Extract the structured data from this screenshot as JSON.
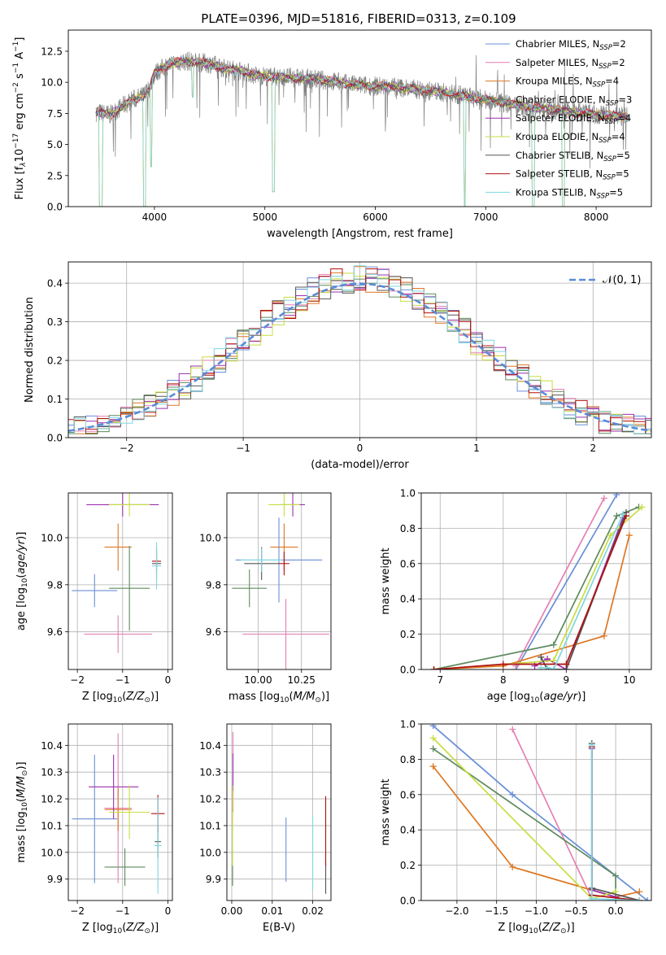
{
  "figure": {
    "title": "PLATE=0396, MJD=51816, FIBERID=0313, z=0.109"
  },
  "colors": {
    "chabrier_miles": "#6a8fd8",
    "salpeter_miles": "#e67fb3",
    "kroupa_miles": "#dd7722",
    "chabrier_elodie": "#5e8a5e",
    "salpeter_elodie": "#9b2fae",
    "kroupa_elodie": "#c8dd40",
    "chabrier_stelib": "#555555",
    "salpeter_stelib": "#b01010",
    "kroupa_stelib": "#7fd6e0",
    "normal_curve": "#5b8bd6",
    "data_spectrum": "#808080"
  },
  "chart_data": [
    {
      "id": "spectrum",
      "type": "line",
      "xlabel": "wavelength [Angstrom, rest frame]",
      "ylabel_html": "Flux [f<tspan font-style='italic' dy='3' font-size='9'>λ</tspan><tspan dy='-3'>10</tspan><tspan dy='-6' font-size='9'>−17</tspan><tspan dy='6'> erg cm</tspan><tspan dy='-6' font-size='9'>−2</tspan><tspan dy='6'> s</tspan><tspan dy='-6' font-size='9'>−1</tspan><tspan dy='6'> A</tspan><tspan dy='-6' font-size='9'>−1</tspan><tspan dy='6'>]</tspan>",
      "xlim": [
        3220,
        8500
      ],
      "ylim": [
        0,
        14.2
      ],
      "xticks": [
        4000,
        5000,
        6000,
        7000,
        8000
      ],
      "yticks": [
        0.0,
        2.5,
        5.0,
        7.5,
        10.0,
        12.5
      ],
      "legend": [
        {
          "name": "Chabrier MILES",
          "nssp": "2",
          "color_key": "chabrier_miles"
        },
        {
          "name": "Salpeter MILES",
          "nssp": "2",
          "color_key": "salpeter_miles"
        },
        {
          "name": "Kroupa MILES",
          "nssp": "4",
          "color_key": "kroupa_miles"
        },
        {
          "name": "Chabrier ELODIE",
          "nssp": "3",
          "color_key": "chabrier_elodie"
        },
        {
          "name": "Salpeter ELODIE",
          "nssp": "4",
          "color_key": "salpeter_elodie"
        },
        {
          "name": "Kroupa ELODIE",
          "nssp": "4",
          "color_key": "kroupa_elodie"
        },
        {
          "name": "Chabrier STELIB",
          "nssp": "5",
          "color_key": "chabrier_stelib"
        },
        {
          "name": "Salpeter STELIB",
          "nssp": "5",
          "color_key": "salpeter_stelib"
        },
        {
          "name": "Kroupa STELIB",
          "nssp": "5",
          "color_key": "kroupa_stelib"
        }
      ],
      "model_continuum": [
        [
          3470,
          7.6
        ],
        [
          3600,
          7.4
        ],
        [
          3700,
          8.0
        ],
        [
          3800,
          8.6
        ],
        [
          3900,
          8.9
        ],
        [
          3960,
          9.6
        ],
        [
          4000,
          10.7
        ],
        [
          4100,
          11.3
        ],
        [
          4200,
          11.6
        ],
        [
          4300,
          11.7
        ],
        [
          4400,
          11.6
        ],
        [
          4500,
          11.5
        ],
        [
          4600,
          11.2
        ],
        [
          4700,
          11.0
        ],
        [
          4800,
          10.9
        ],
        [
          4900,
          10.6
        ],
        [
          5000,
          10.5
        ],
        [
          5200,
          10.4
        ],
        [
          5400,
          10.3
        ],
        [
          5600,
          10.1
        ],
        [
          5800,
          9.8
        ],
        [
          6000,
          9.7
        ],
        [
          6200,
          9.6
        ],
        [
          6400,
          9.4
        ],
        [
          6600,
          9.2
        ],
        [
          6800,
          8.9
        ],
        [
          7000,
          8.6
        ],
        [
          7200,
          8.3
        ],
        [
          7400,
          8.0
        ],
        [
          7600,
          7.8
        ],
        [
          7800,
          7.6
        ],
        [
          8000,
          7.4
        ],
        [
          8200,
          7.3
        ],
        [
          8300,
          7.2
        ]
      ],
      "model_dips": [
        [
          3500,
          3530,
          0
        ],
        [
          3900,
          3920,
          0
        ],
        [
          3960,
          3975,
          3.2
        ],
        [
          4340,
          4350,
          8.8
        ],
        [
          5070,
          5090,
          1.2
        ],
        [
          6800,
          6820,
          0
        ],
        [
          7420,
          7440,
          0
        ],
        [
          7690,
          7710,
          0
        ]
      ]
    },
    {
      "id": "residuals",
      "type": "line",
      "xlabel": "(data-model)/error",
      "ylabel": "Normed distribution",
      "xlim": [
        -2.5,
        2.5
      ],
      "ylim": [
        0,
        0.455
      ],
      "xticks": [
        -2,
        -1,
        0,
        1,
        2
      ],
      "yticks": [
        0.0,
        0.1,
        0.2,
        0.3,
        0.4
      ],
      "legend": [
        {
          "name": "𝒩(0, 1)",
          "color_key": "normal_curve"
        }
      ],
      "bin_width": 0.1
    },
    {
      "id": "age-vs-Z",
      "type": "scatter",
      "xlabel_html": "Z [log<tspan dy='3' font-size='9'>10</tspan><tspan dy='-3'>(</tspan><tspan font-style='italic'>Z/Z</tspan><tspan dy='3' font-size='9'>⊙</tspan><tspan dy='-3'>)]</tspan>",
      "ylabel_html": "age  [log<tspan dy='3' font-size='9'>10</tspan><tspan dy='-3'>(</tspan><tspan font-style='italic'>age/yr</tspan>)]",
      "xlim": [
        -2.2,
        0.1
      ],
      "ylim": [
        9.44,
        10.19
      ],
      "xticks": [
        -2,
        -1,
        0
      ],
      "yticks": [
        9.6,
        9.8,
        10.0
      ],
      "points": [
        {
          "color_key": "chabrier_miles",
          "x": -1.62,
          "xerr": 0.5,
          "y": 9.775,
          "yerr": 0.07
        },
        {
          "color_key": "salpeter_miles",
          "x": -1.1,
          "xerr": 0.75,
          "y": 9.59,
          "yerr": 0.08
        },
        {
          "color_key": "kroupa_miles",
          "x": -1.1,
          "xerr": 0.3,
          "y": 9.96,
          "yerr": 0.1
        },
        {
          "color_key": "chabrier_elodie",
          "x": -0.85,
          "xerr": 0.45,
          "y": 9.785,
          "yerr": 0.18
        },
        {
          "color_key": "salpeter_elodie",
          "x": -1.0,
          "xerr": 0.8,
          "y": 10.14,
          "yerr": 0.05
        },
        {
          "color_key": "kroupa_elodie",
          "x": -0.85,
          "xerr": 0.45,
          "y": 10.14,
          "yerr": 0.05
        },
        {
          "color_key": "chabrier_stelib",
          "x": -0.25,
          "xerr": 0.1,
          "y": 9.89,
          "yerr": 0.07
        },
        {
          "color_key": "salpeter_stelib",
          "x": -0.25,
          "xerr": 0.1,
          "y": 9.9,
          "yerr": 0.05
        },
        {
          "color_key": "kroupa_stelib",
          "x": -0.25,
          "xerr": 0.1,
          "y": 9.88,
          "yerr": 0.1
        }
      ]
    },
    {
      "id": "age-vs-mass",
      "type": "scatter",
      "xlabel_html": "mass [log<tspan dy='3' font-size='9'>10</tspan><tspan dy='-3'>(</tspan><tspan font-style='italic'>M/M</tspan><tspan dy='3' font-size='9'>⊙</tspan><tspan dy='-3'>)]</tspan>",
      "xlim": [
        9.82,
        10.42
      ],
      "ylim": [
        9.44,
        10.19
      ],
      "xticks": [
        10.0,
        10.25
      ],
      "xtick_labels": [
        "10.00",
        "10.25"
      ],
      "yticks": [
        9.6,
        9.8,
        10.0
      ],
      "points": [
        {
          "color_key": "chabrier_miles",
          "x": 10.12,
          "xerr": 0.25,
          "y": 9.905,
          "yerr": 0.18
        },
        {
          "color_key": "salpeter_miles",
          "x": 10.16,
          "xerr": 0.25,
          "y": 9.59,
          "yerr": 0.15
        },
        {
          "color_key": "kroupa_miles",
          "x": 10.15,
          "xerr": 0.08,
          "y": 9.96,
          "yerr": 0.1
        },
        {
          "color_key": "chabrier_elodie",
          "x": 9.95,
          "xerr": 0.1,
          "y": 9.785,
          "yerr": 0.08
        },
        {
          "color_key": "salpeter_elodie",
          "x": 10.2,
          "xerr": 0.07,
          "y": 10.14,
          "yerr": 0.05
        },
        {
          "color_key": "kroupa_elodie",
          "x": 10.15,
          "xerr": 0.09,
          "y": 10.14,
          "yerr": 0.05
        },
        {
          "color_key": "chabrier_stelib",
          "x": 10.02,
          "xerr": 0.1,
          "y": 9.89,
          "yerr": 0.07
        },
        {
          "color_key": "salpeter_stelib",
          "x": 10.15,
          "xerr": 0.03,
          "y": 9.89,
          "yerr": 0.05
        },
        {
          "color_key": "kroupa_stelib",
          "x": 10.02,
          "xerr": 0.12,
          "y": 9.905,
          "yerr": 0.05
        }
      ]
    },
    {
      "id": "massweight-vs-age",
      "type": "line",
      "xlabel_html": "age  [log<tspan dy='3' font-size='9'>10</tspan><tspan dy='-3'>(</tspan><tspan font-style='italic'>age/yr</tspan>)]",
      "ylabel": "mass weight",
      "xlim": [
        6.7,
        10.35
      ],
      "ylim": [
        0,
        1.0
      ],
      "xticks": [
        7,
        8,
        9,
        10
      ],
      "yticks": [
        0.0,
        0.2,
        0.4,
        0.6,
        0.8,
        1.0
      ],
      "series": [
        {
          "color_key": "chabrier_miles",
          "x": [
            8.2,
            9.8
          ],
          "y": [
            0.0,
            0.99
          ]
        },
        {
          "color_key": "salpeter_miles",
          "x": [
            8.2,
            9.6
          ],
          "y": [
            0.02,
            0.97
          ]
        },
        {
          "color_key": "kroupa_miles",
          "x": [
            6.9,
            8.0,
            9.6,
            10.0
          ],
          "y": [
            0.0,
            0.02,
            0.19,
            0.76
          ]
        },
        {
          "color_key": "chabrier_elodie",
          "x": [
            6.9,
            8.8,
            9.8,
            10.15
          ],
          "y": [
            0.0,
            0.14,
            0.87,
            0.92
          ]
        },
        {
          "color_key": "salpeter_elodie",
          "x": [
            8.5,
            8.7,
            9.0,
            9.9
          ],
          "y": [
            0.02,
            0.06,
            0.0,
            0.86
          ]
        },
        {
          "color_key": "kroupa_elodie",
          "x": [
            6.9,
            8.8,
            9.7,
            10.2
          ],
          "y": [
            0.0,
            0.05,
            0.76,
            0.92
          ]
        },
        {
          "color_key": "chabrier_stelib",
          "x": [
            8.6,
            8.7,
            9.0,
            9.95
          ],
          "y": [
            0.07,
            0.0,
            0.0,
            0.89
          ]
        },
        {
          "color_key": "salpeter_stelib",
          "x": [
            6.9,
            8.0,
            9.0,
            9.95
          ],
          "y": [
            0.0,
            0.03,
            0.03,
            0.87
          ]
        },
        {
          "color_key": "kroupa_stelib",
          "x": [
            8.6,
            8.7,
            8.8,
            9.9
          ],
          "y": [
            0.01,
            0.01,
            0.0,
            0.88
          ]
        }
      ]
    },
    {
      "id": "mass-vs-Z",
      "type": "scatter",
      "xlabel_html": "Z [log<tspan dy='3' font-size='9'>10</tspan><tspan dy='-3'>(</tspan><tspan font-style='italic'>Z/Z</tspan><tspan dy='3' font-size='9'>⊙</tspan><tspan dy='-3'>)]</tspan>",
      "ylabel_html": "mass [log<tspan dy='3' font-size='9'>10</tspan><tspan dy='-3'>(</tspan><tspan font-style='italic'>M/M</tspan><tspan dy='3' font-size='9'>⊙</tspan><tspan dy='-3'>)]</tspan>",
      "xlim": [
        -2.2,
        0.1
      ],
      "ylim": [
        9.82,
        10.48
      ],
      "xticks": [
        -2,
        -1,
        0
      ],
      "yticks": [
        9.9,
        10.0,
        10.1,
        10.2,
        10.3,
        10.4
      ],
      "points": [
        {
          "color_key": "chabrier_miles",
          "x": -1.62,
          "xerr": 0.5,
          "y": 10.125,
          "yerr": 0.24
        },
        {
          "color_key": "salpeter_miles",
          "x": -1.1,
          "xerr": 0.3,
          "y": 10.165,
          "yerr": 0.28
        },
        {
          "color_key": "kroupa_miles",
          "x": -1.1,
          "xerr": 0.3,
          "y": 10.16,
          "yerr": 0.08
        },
        {
          "color_key": "chabrier_elodie",
          "x": -0.95,
          "xerr": 0.45,
          "y": 9.945,
          "yerr": 0.07
        },
        {
          "color_key": "salpeter_elodie",
          "x": -1.2,
          "xerr": 0.55,
          "y": 10.245,
          "yerr": 0.12
        },
        {
          "color_key": "kroupa_elodie",
          "x": -0.85,
          "xerr": 0.45,
          "y": 10.15,
          "yerr": 0.1
        },
        {
          "color_key": "chabrier_stelib",
          "x": -0.22,
          "xerr": 0.07,
          "y": 10.04,
          "yerr": 0.06
        },
        {
          "color_key": "salpeter_stelib",
          "x": -0.22,
          "xerr": 0.15,
          "y": 10.145,
          "yerr": 0.07
        },
        {
          "color_key": "kroupa_stelib",
          "x": -0.22,
          "xerr": 0.08,
          "y": 10.025,
          "yerr": 0.18
        }
      ]
    },
    {
      "id": "mass-vs-ebv",
      "type": "scatter",
      "xlabel": "E(B-V)",
      "xlim": [
        -0.0012,
        0.0245
      ],
      "ylim": [
        9.82,
        10.48
      ],
      "xticks": [
        0.0,
        0.01,
        0.02
      ],
      "xtick_labels": [
        "0.00",
        "0.01",
        "0.02"
      ],
      "yticks": [
        9.9,
        10.0,
        10.1,
        10.2,
        10.3,
        10.4
      ],
      "points": [
        {
          "color_key": "chabrier_miles",
          "x": 0.0134,
          "y": 10.01,
          "yerr": 0.12
        },
        {
          "color_key": "salpeter_miles",
          "x": 0.0003,
          "y": 10.3,
          "yerr": 0.15
        },
        {
          "color_key": "kroupa_miles",
          "x": 0.0002,
          "y": 10.16,
          "yerr": 0.08
        },
        {
          "color_key": "chabrier_elodie",
          "x": 0.0002,
          "y": 9.945,
          "yerr": 0.07
        },
        {
          "color_key": "salpeter_elodie",
          "x": 0.0003,
          "y": 10.3,
          "yerr": 0.07
        },
        {
          "color_key": "kroupa_elodie",
          "x": 0.0002,
          "y": 10.1,
          "yerr": 0.15
        },
        {
          "color_key": "chabrier_stelib",
          "x": 0.0232,
          "y": 9.905,
          "yerr": 0.06
        },
        {
          "color_key": "salpeter_stelib",
          "x": 0.0232,
          "y": 10.08,
          "yerr": 0.13
        },
        {
          "color_key": "kroupa_stelib",
          "x": 0.02,
          "y": 10.0,
          "yerr": 0.14
        }
      ]
    },
    {
      "id": "massweight-vs-Z",
      "type": "line",
      "xlabel_html": "Z [log<tspan dy='3' font-size='9'>10</tspan><tspan dy='-3'>(</tspan><tspan font-style='italic'>Z/Z</tspan><tspan dy='3' font-size='9'>⊙</tspan><tspan dy='-3'>)]</tspan>",
      "ylabel": "mass weight",
      "xlim": [
        -2.45,
        0.45
      ],
      "ylim": [
        0,
        1.0
      ],
      "xticks": [
        -2.0,
        -1.5,
        -1.0,
        -0.5,
        0.0
      ],
      "xtick_labels": [
        "−2.0",
        "−1.5",
        "−1.0",
        "−0.5",
        "0.0"
      ],
      "yticks": [
        0.0,
        0.2,
        0.4,
        0.6,
        0.8,
        1.0
      ],
      "series": [
        {
          "color_key": "chabrier_miles",
          "x": [
            -2.3,
            -1.3,
            0.4
          ],
          "y": [
            0.99,
            0.6,
            0.0
          ]
        },
        {
          "color_key": "salpeter_miles",
          "x": [
            -1.3,
            -0.3
          ],
          "y": [
            0.97,
            0.01
          ]
        },
        {
          "color_key": "kroupa_miles",
          "x": [
            -2.3,
            -1.3,
            0.0,
            0.3
          ],
          "y": [
            0.76,
            0.19,
            0.02,
            0.05
          ]
        },
        {
          "color_key": "chabrier_elodie",
          "x": [
            -2.3,
            0.0,
            0.0
          ],
          "y": [
            0.86,
            0.14,
            0.0
          ]
        },
        {
          "color_key": "salpeter_elodie",
          "x": [
            -0.3,
            -0.3,
            0.0
          ],
          "y": [
            0.86,
            0.06,
            0.02
          ]
        },
        {
          "color_key": "kroupa_elodie",
          "x": [
            -2.3,
            -0.3,
            0.0
          ],
          "y": [
            0.92,
            0.01,
            0.05
          ]
        },
        {
          "color_key": "chabrier_stelib",
          "x": [
            -0.3,
            -0.3,
            0.3
          ],
          "y": [
            0.89,
            0.07,
            0.0
          ]
        },
        {
          "color_key": "salpeter_stelib",
          "x": [
            -0.3,
            -0.3,
            0.3
          ],
          "y": [
            0.87,
            0.03,
            0.0
          ]
        },
        {
          "color_key": "kroupa_stelib",
          "x": [
            -0.3,
            -0.3,
            0.3
          ],
          "y": [
            0.88,
            0.01,
            0.0
          ]
        }
      ]
    }
  ]
}
